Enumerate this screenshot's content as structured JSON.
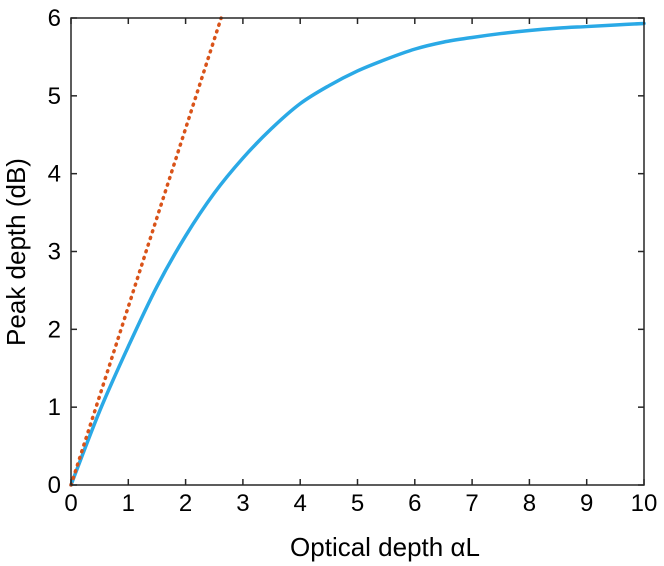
{
  "chart_data": {
    "type": "line",
    "title": "",
    "xlabel": "Optical depth  αL",
    "ylabel": "Peak depth (dB)",
    "xlim": [
      0,
      10
    ],
    "ylim": [
      0,
      6
    ],
    "xticks": [
      "0",
      "1",
      "2",
      "3",
      "4",
      "5",
      "6",
      "7",
      "8",
      "9",
      "10"
    ],
    "yticks": [
      "0",
      "1",
      "2",
      "3",
      "4",
      "5",
      "6"
    ],
    "grid": false,
    "legend": "none",
    "series": [
      {
        "style": "solid",
        "color": "#2aa9e6",
        "x": [
          0,
          0.5,
          1,
          1.5,
          2,
          2.5,
          3,
          3.5,
          4,
          4.5,
          5,
          5.5,
          6,
          6.5,
          7,
          7.5,
          8,
          8.5,
          9,
          9.5,
          10
        ],
        "y": [
          0,
          0.95,
          1.78,
          2.55,
          3.2,
          3.75,
          4.2,
          4.58,
          4.9,
          5.13,
          5.32,
          5.47,
          5.6,
          5.69,
          5.75,
          5.8,
          5.84,
          5.87,
          5.89,
          5.91,
          5.93
        ]
      },
      {
        "style": "dotted",
        "color": "#d95319",
        "x": [
          0,
          2.62
        ],
        "y": [
          0,
          6
        ]
      }
    ]
  }
}
